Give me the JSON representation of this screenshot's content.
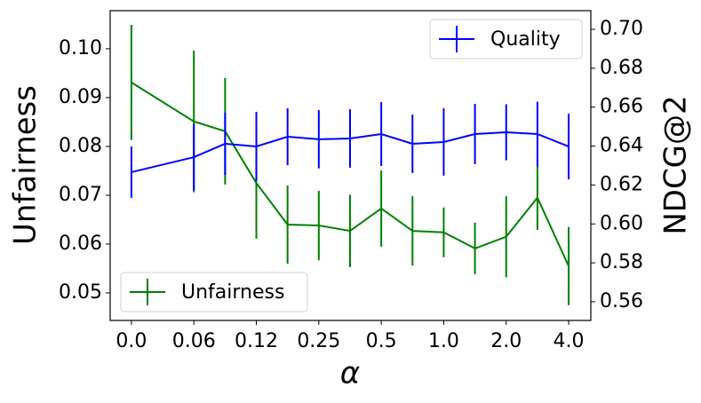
{
  "chart_data": {
    "type": "line",
    "xlabel": "α",
    "ylabel": "Unfairness",
    "y2label": "NDCG@2",
    "x": [
      0,
      2,
      3,
      4,
      5,
      6,
      7,
      8,
      9,
      10,
      11,
      12,
      13,
      14
    ],
    "xlim": [
      -0.68,
      14.71
    ],
    "xticks": [
      {
        "value": 0,
        "label": "0.0"
      },
      {
        "value": 2,
        "label": "0.06"
      },
      {
        "value": 4,
        "label": "0.12"
      },
      {
        "value": 6,
        "label": "0.25"
      },
      {
        "value": 8,
        "label": "0.5"
      },
      {
        "value": 10,
        "label": "1.0"
      },
      {
        "value": 12,
        "label": "2.0"
      },
      {
        "value": 14,
        "label": "4.0"
      }
    ],
    "ylim": [
      0.04436,
      0.1078
    ],
    "yticks": [
      0.05,
      0.06,
      0.07,
      0.08,
      0.09,
      {
        "value": 0.1,
        "label": "0.10"
      }
    ],
    "y2lim": [
      0.5504,
      0.7096
    ],
    "y2ticks": [
      0.56,
      0.58,
      {
        "value": 0.6,
        "label": "0.60"
      },
      0.62,
      0.64,
      0.66,
      0.68,
      {
        "value": 0.7,
        "label": "0.70"
      }
    ],
    "series": [
      {
        "name": "Unfairness",
        "color": "#008000",
        "axis": "y",
        "legend_loc": "lower left",
        "values": [
          0.0931,
          0.0851,
          0.0831,
          0.0725,
          0.064,
          0.0638,
          0.0627,
          0.0673,
          0.0627,
          0.0624,
          0.0591,
          0.0615,
          0.0695,
          0.0555
        ],
        "errors": [
          0.0118,
          0.0145,
          0.0109,
          0.0114,
          0.008,
          0.0071,
          0.0074,
          0.0078,
          0.0071,
          0.0051,
          0.0053,
          0.0083,
          0.0066,
          0.008
        ]
      },
      {
        "name": "Quality",
        "color": "#0000ff",
        "axis": "y2",
        "legend_loc": "upper right",
        "values": [
          0.6266,
          0.6343,
          0.6412,
          0.6398,
          0.6448,
          0.6435,
          0.6439,
          0.6462,
          0.6412,
          0.6421,
          0.6462,
          0.6471,
          0.6462,
          0.6398
        ],
        "errors": [
          0.0132,
          0.0171,
          0.016,
          0.0178,
          0.0146,
          0.015,
          0.015,
          0.0164,
          0.015,
          0.0173,
          0.0155,
          0.0144,
          0.0166,
          0.0169
        ]
      }
    ]
  }
}
